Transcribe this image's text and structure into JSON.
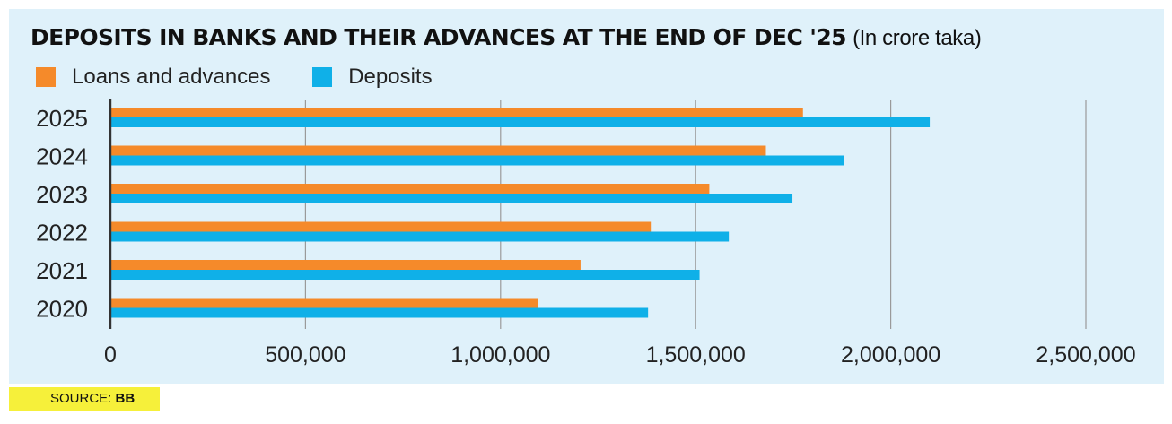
{
  "header": {
    "title_bold": "DEPOSITS IN BANKS AND THEIR ADVANCES AT THE END OF DEC '25",
    "title_unit": "(In crore taka)"
  },
  "legend": {
    "items": [
      {
        "label": "Loans and advances",
        "color": "#f58a2a"
      },
      {
        "label": "Deposits",
        "color": "#0fb0e8"
      }
    ]
  },
  "footer": {
    "source_label": "SOURCE:",
    "source_value": "BB"
  },
  "chart_data": {
    "type": "bar",
    "orientation": "horizontal",
    "categories": [
      "2025",
      "2024",
      "2023",
      "2022",
      "2021",
      "2020"
    ],
    "series": [
      {
        "name": "Loans and advances",
        "color": "#f58a2a",
        "values": [
          1775000,
          1680000,
          1535000,
          1385000,
          1205000,
          1095000
        ]
      },
      {
        "name": "Deposits",
        "color": "#0fb0e8",
        "values": [
          2100000,
          1880000,
          1748000,
          1585000,
          1510000,
          1378000
        ]
      }
    ],
    "xlim": [
      0,
      2500000
    ],
    "xticks": [
      0,
      500000,
      1000000,
      1500000,
      2000000,
      2500000
    ],
    "xtick_labels": [
      "0",
      "500,000",
      "1,000,000",
      "1,500,000",
      "2,000,000",
      "2,500,000"
    ],
    "grid": true,
    "legend_position": "top-left"
  }
}
